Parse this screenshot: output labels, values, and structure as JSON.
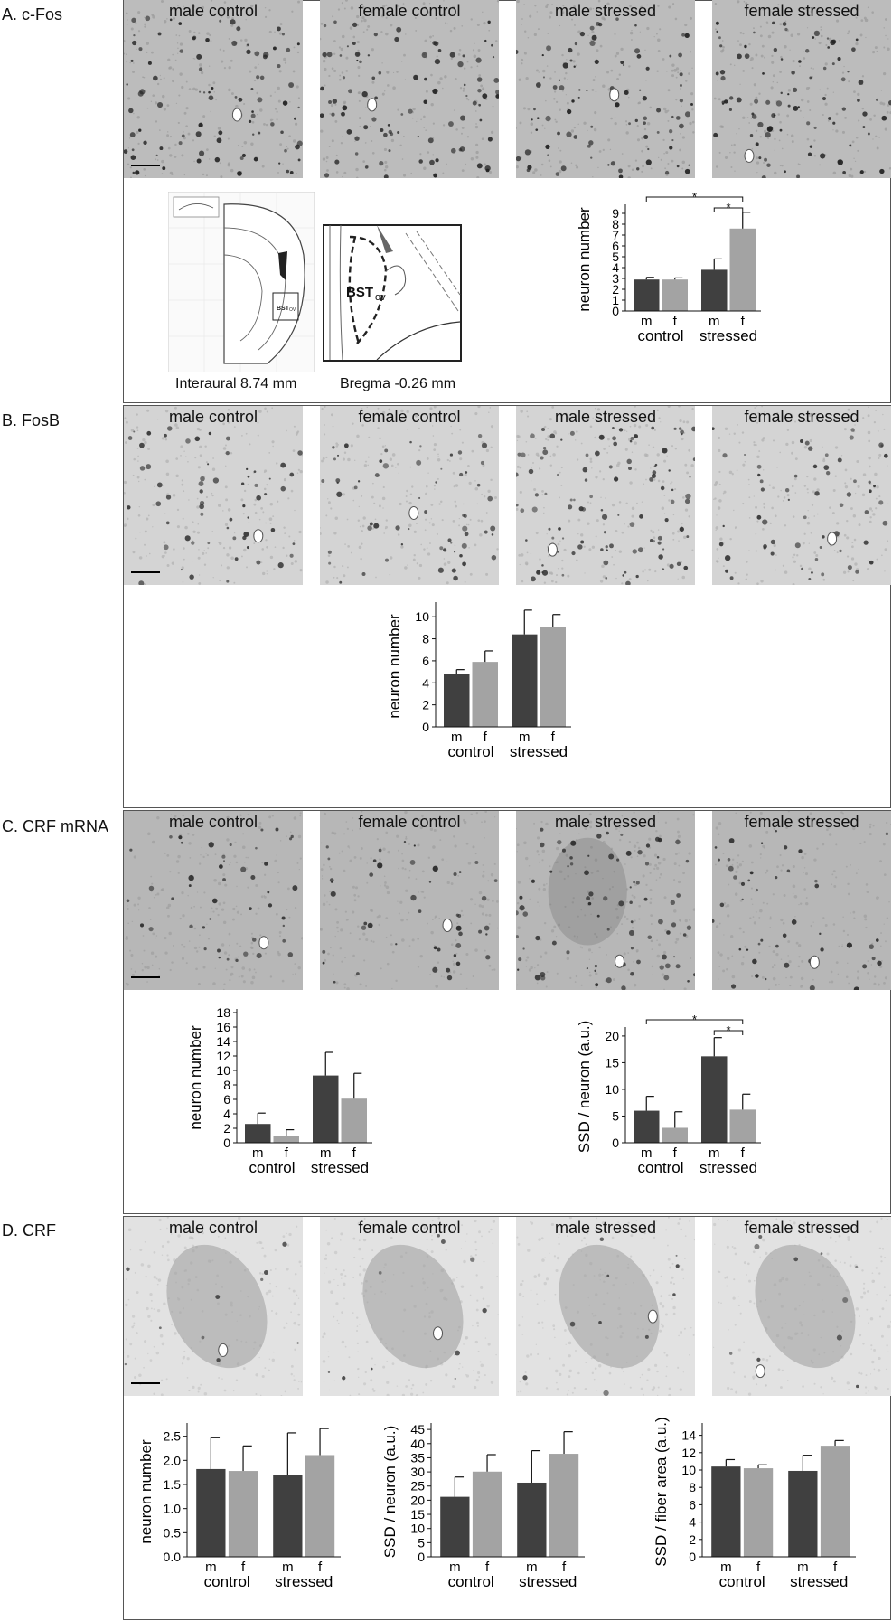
{
  "colors": {
    "male": "#404040",
    "female": "#a3a3a3",
    "frame": "#555555"
  },
  "panels": {
    "A": {
      "label": "A. c-Fos",
      "captions": [
        "male control",
        "female control",
        "male stressed",
        "female stressed"
      ]
    },
    "B": {
      "label": "B. FosB",
      "captions": [
        "male control",
        "female control",
        "male stressed",
        "female stressed"
      ]
    },
    "C": {
      "label": "C. CRF mRNA",
      "captions": [
        "male control",
        "female control",
        "male stressed",
        "female stressed"
      ]
    },
    "D": {
      "label": "D. CRF",
      "captions": [
        "male control",
        "female control",
        "male stressed",
        "female stressed"
      ]
    }
  },
  "atlas": {
    "left_caption": "Interaural 8.74 mm",
    "right_caption": "Bregma -0.26 mm",
    "region_label": "BST",
    "region_sub": "ov"
  },
  "chart_data": [
    {
      "id": "A",
      "type": "bar",
      "ylabel": "neuron number",
      "ylim": [
        0,
        9.5
      ],
      "yticks": [
        0,
        1,
        2,
        3,
        4,
        5,
        6,
        7,
        8,
        9
      ],
      "groups": [
        "control",
        "stressed"
      ],
      "sublabels": [
        "m",
        "f"
      ],
      "values": [
        2.9,
        2.9,
        3.8,
        7.6
      ],
      "errors": [
        0.2,
        0.15,
        1.0,
        1.5
      ],
      "sig": [
        "*",
        "*"
      ]
    },
    {
      "id": "B",
      "type": "bar",
      "ylabel": "neuron number",
      "ylim": [
        0,
        11
      ],
      "yticks": [
        0,
        2,
        4,
        6,
        8,
        10
      ],
      "groups": [
        "control",
        "stressed"
      ],
      "sublabels": [
        "m",
        "f"
      ],
      "values": [
        4.8,
        5.9,
        8.4,
        9.1
      ],
      "errors": [
        0.4,
        1.0,
        2.2,
        1.1
      ],
      "sig": []
    },
    {
      "id": "C1",
      "type": "bar",
      "ylabel": "neuron number",
      "ylim": [
        0,
        18
      ],
      "yticks": [
        0,
        2,
        4,
        6,
        8,
        10,
        12,
        14,
        16,
        18
      ],
      "groups": [
        "control",
        "stressed"
      ],
      "sublabels": [
        "m",
        "f"
      ],
      "values": [
        2.6,
        0.9,
        9.3,
        6.1
      ],
      "errors": [
        1.5,
        0.9,
        3.2,
        3.5
      ],
      "sig": []
    },
    {
      "id": "C2",
      "type": "bar",
      "ylabel": "SSD / neuron (a.u.)",
      "ylim": [
        0,
        21
      ],
      "yticks": [
        0,
        5,
        10,
        15,
        20
      ],
      "groups": [
        "control",
        "stressed"
      ],
      "sublabels": [
        "m",
        "f"
      ],
      "values": [
        6.0,
        2.8,
        16.2,
        6.2
      ],
      "errors": [
        2.7,
        3.0,
        3.5,
        2.9
      ],
      "sig": [
        "*",
        "*"
      ]
    },
    {
      "id": "D1",
      "type": "bar",
      "ylabel": "neuron number",
      "ylim": [
        0,
        2.7
      ],
      "yticks": [
        "0.0",
        "0.5",
        "1.0",
        "1.5",
        "2.0",
        "2.5"
      ],
      "groups": [
        "control",
        "stressed"
      ],
      "sublabels": [
        "m",
        "f"
      ],
      "values": [
        1.82,
        1.78,
        1.7,
        2.11
      ],
      "errors": [
        0.65,
        0.52,
        0.87,
        0.55
      ],
      "sig": []
    },
    {
      "id": "D2",
      "type": "bar",
      "ylabel": "SSD / neuron (a.u.)",
      "ylim": [
        0,
        46
      ],
      "yticks": [
        0,
        5,
        10,
        15,
        20,
        25,
        30,
        35,
        40,
        45
      ],
      "groups": [
        "control",
        "stressed"
      ],
      "sublabels": [
        "m",
        "f"
      ],
      "values": [
        21.2,
        30.1,
        26.2,
        36.4
      ],
      "errors": [
        7.0,
        6.0,
        11.3,
        7.8
      ],
      "sig": []
    },
    {
      "id": "D3",
      "type": "bar",
      "ylabel": "SSD / fiber area (a.u.)",
      "ylim": [
        0,
        15
      ],
      "yticks": [
        0,
        2,
        4,
        6,
        8,
        10,
        12,
        14
      ],
      "groups": [
        "control",
        "stressed"
      ],
      "sublabels": [
        "m",
        "f"
      ],
      "values": [
        10.4,
        10.2,
        9.9,
        12.8
      ],
      "errors": [
        0.8,
        0.4,
        1.8,
        0.6
      ],
      "sig": []
    }
  ]
}
